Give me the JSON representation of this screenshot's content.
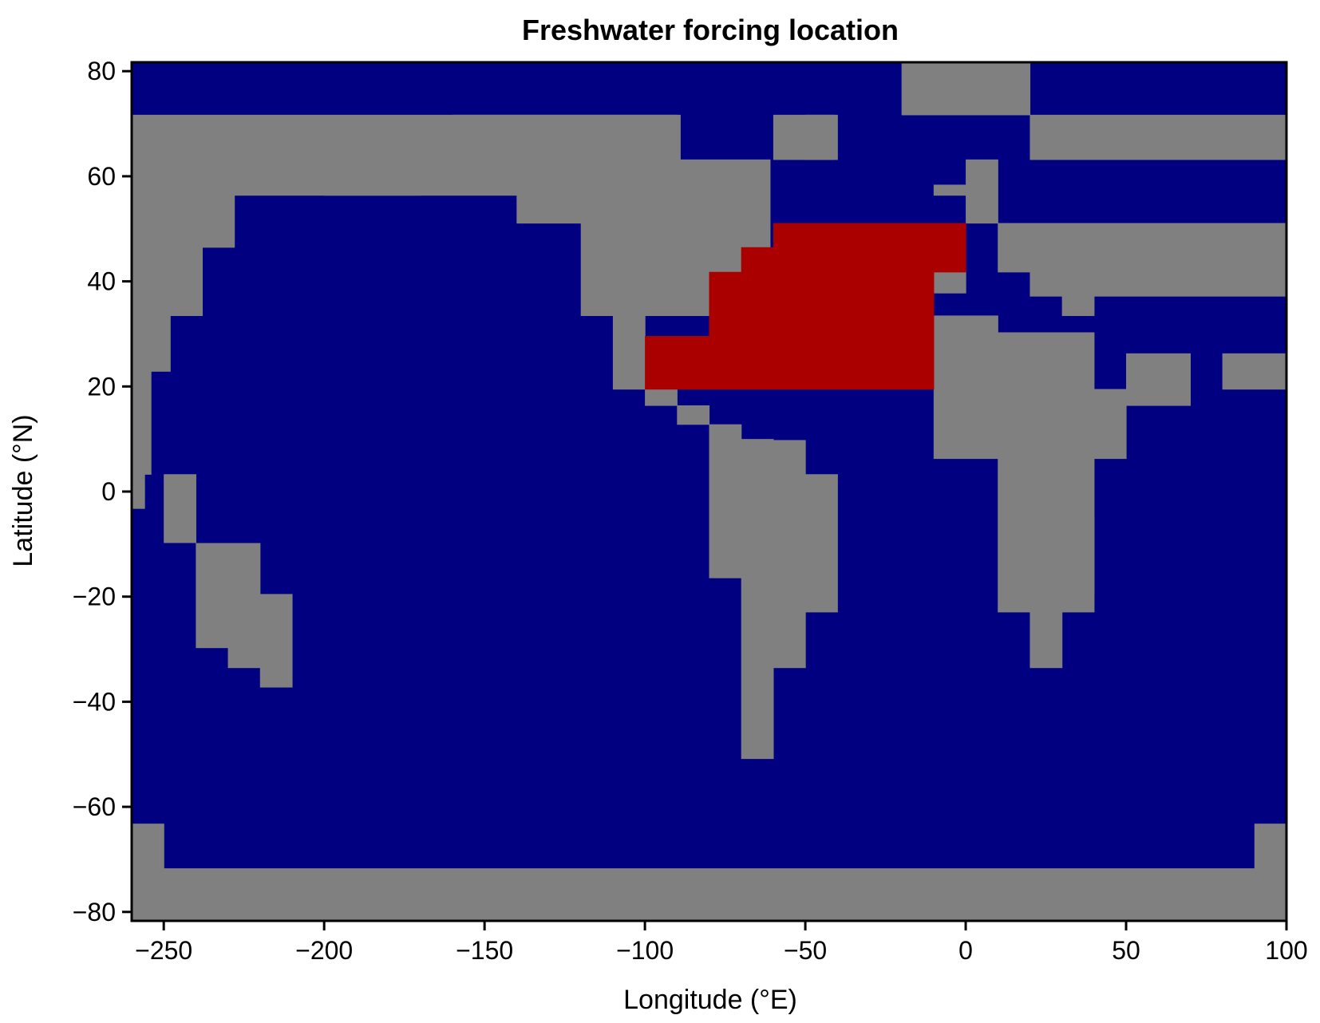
{
  "chart_data": {
    "type": "heatmap",
    "title": "Freshwater forcing location",
    "xlabel": "Longitude (°E)",
    "ylabel": "Latitude (°N)",
    "xlim": [
      -260,
      100
    ],
    "ylim": [
      -81.7,
      81.7
    ],
    "x_ticks": [
      -250,
      -200,
      -150,
      -100,
      -50,
      0,
      50,
      100
    ],
    "y_ticks": [
      -80,
      -60,
      -40,
      -20,
      0,
      20,
      40,
      60,
      80
    ],
    "x_tick_labels": [
      "−250",
      "−200",
      "−150",
      "−100",
      "−50",
      "0",
      "50",
      "100"
    ],
    "y_tick_labels": [
      "−80",
      "−60",
      "−40",
      "−20",
      "0",
      "20",
      "40",
      "60",
      "80"
    ],
    "grid": false,
    "legend": "none",
    "colors": {
      "ocean": "#000080",
      "land": "#808080",
      "forcing": "#aa0000"
    },
    "land_cells": [
      [
        -260,
        63.2,
        170,
        8.5
      ],
      [
        -20,
        71.7,
        40,
        10.0
      ],
      [
        -160,
        63.2,
        71,
        8.5
      ],
      [
        -60,
        63.2,
        19,
        8.5
      ],
      [
        -50,
        63.2,
        10,
        8.5
      ],
      [
        20,
        63.2,
        80,
        8.5
      ],
      [
        -260,
        56.4,
        122,
        6.8
      ],
      [
        -260,
        46.5,
        32,
        9.9
      ],
      [
        -260,
        33.5,
        22,
        13.0
      ],
      [
        -260,
        22.9,
        12,
        10.6
      ],
      [
        -260,
        3.3,
        6,
        19.6
      ],
      [
        -260,
        -3.2,
        4,
        6.5
      ],
      [
        -250,
        -9.7,
        10,
        13.0
      ],
      [
        -200,
        56.4,
        30,
        6.8
      ],
      [
        -140,
        51.1,
        79,
        12.1
      ],
      [
        -120,
        33.5,
        59,
        17.6
      ],
      [
        -110,
        19.5,
        10,
        14.0
      ],
      [
        -10,
        37.8,
        10,
        4.4
      ],
      [
        -10,
        56.4,
        10,
        2.0
      ],
      [
        0,
        51.1,
        10,
        12.1
      ],
      [
        10,
        41.8,
        10,
        9.3
      ],
      [
        20,
        37.2,
        80,
        13.9
      ],
      [
        30,
        33.5,
        10,
        3.7
      ],
      [
        -10,
        6.3,
        20,
        27.2
      ],
      [
        10,
        -22.9,
        30,
        53.2
      ],
      [
        40,
        6.3,
        10,
        13.2
      ],
      [
        50,
        19.5,
        20,
        6.8
      ],
      [
        20,
        16.4,
        50,
        3.1
      ],
      [
        80,
        19.5,
        20,
        6.8
      ],
      [
        20,
        -33.5,
        10,
        10.6
      ],
      [
        30,
        -19.5,
        10,
        14.6
      ],
      [
        -100,
        16.4,
        10,
        3.1
      ],
      [
        -90,
        12.8,
        10,
        3.6
      ],
      [
        -80,
        -16.4,
        10,
        29.2
      ],
      [
        -70,
        -50.8,
        10,
        60.8
      ],
      [
        -60,
        -33.5,
        10,
        43.3
      ],
      [
        -50,
        -22.9,
        10,
        26.2
      ],
      [
        -240,
        -29.7,
        20,
        19.9
      ],
      [
        -220,
        -37.2,
        10,
        17.7
      ],
      [
        -230,
        -33.5,
        10,
        3.8
      ],
      [
        -260,
        -81.7,
        360,
        10.0
      ],
      [
        -260,
        -71.7,
        10,
        8.5
      ],
      [
        90,
        -71.7,
        10,
        8.5
      ]
    ],
    "forcing_cells": [
      [
        -60,
        46.5,
        50,
        4.6
      ],
      [
        -10,
        41.8,
        10,
        9.3
      ],
      [
        -70,
        41.8,
        60,
        4.7
      ],
      [
        -80,
        29.6,
        70,
        12.2
      ],
      [
        -100,
        19.5,
        90,
        10.1
      ]
    ]
  }
}
